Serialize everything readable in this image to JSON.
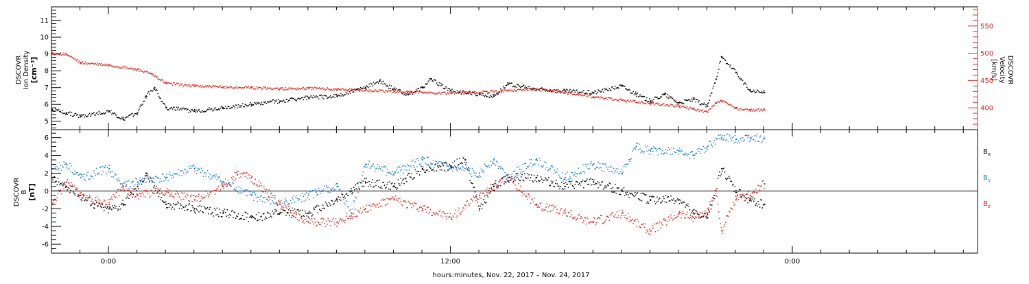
{
  "colors": {
    "black": "#000000",
    "red": "#e8231b",
    "blue": "#1a7fd6"
  },
  "time_axis": {
    "range_hours": [
      -2,
      30.5
    ],
    "ticks": [
      {
        "h": 0,
        "label": "0:00"
      },
      {
        "h": 12,
        "label": "12:00"
      },
      {
        "h": 24,
        "label": "0:00"
      }
    ],
    "title": "hours:minutes, Nov. 22, 2017 – Nov. 24, 2017"
  },
  "chart_data": [
    {
      "type": "scatter",
      "panel": "top",
      "y_label_lines": [
        "DSCOVR",
        "Ion Density",
        "[cm⁻³]"
      ],
      "y2_label_lines": [
        "DSCOVR",
        "Velocity",
        "[km/s]"
      ],
      "ylim": [
        4.5,
        11.8
      ],
      "y_ticks": [
        5,
        6,
        7,
        8,
        9,
        10,
        11
      ],
      "y2lim": [
        360,
        585
      ],
      "y2_ticks": [
        400,
        450,
        500,
        550
      ],
      "data_end_hour": 23,
      "series": [
        {
          "key": "density",
          "color": "black",
          "axis": "left",
          "jitter": 0.12,
          "x": [
            -2,
            -1.5,
            -1,
            0,
            0.5,
            1,
            1.3,
            1.6,
            2,
            3,
            4,
            5,
            6,
            7,
            8,
            9,
            9.5,
            10,
            10.5,
            11,
            11.3,
            12,
            13,
            13.5,
            14,
            15,
            16,
            17,
            18,
            18.5,
            19,
            19.5,
            20,
            20.5,
            21,
            21.3,
            21.5,
            22,
            22.5,
            23
          ],
          "y": [
            5.7,
            5.5,
            5.3,
            5.6,
            5.1,
            5.5,
            6.5,
            7.0,
            5.8,
            5.6,
            5.8,
            6.0,
            6.2,
            6.4,
            6.5,
            7.0,
            7.4,
            6.9,
            6.6,
            7.0,
            7.5,
            6.8,
            6.6,
            6.5,
            7.2,
            6.9,
            6.8,
            6.7,
            7.1,
            6.6,
            6.2,
            6.6,
            6.1,
            6.3,
            5.9,
            7.5,
            8.8,
            7.9,
            6.8,
            6.7
          ]
        },
        {
          "key": "velocity",
          "color": "red",
          "axis": "right",
          "jitter": 2.5,
          "x": [
            -2,
            -1.5,
            -1,
            0,
            1,
            1.5,
            2,
            3,
            4,
            5,
            6,
            7,
            8,
            9,
            10,
            11,
            12,
            13,
            14,
            15,
            16,
            17,
            18,
            19,
            20,
            20.5,
            21,
            21.3,
            21.5,
            22,
            22.5,
            23
          ],
          "y": [
            500,
            498,
            483,
            478,
            470,
            462,
            445,
            440,
            438,
            437,
            435,
            436,
            434,
            432,
            430,
            428,
            427,
            428,
            432,
            434,
            428,
            420,
            414,
            408,
            403,
            398,
            392,
            408,
            413,
            399,
            396,
            396
          ]
        }
      ]
    },
    {
      "type": "scatter",
      "panel": "bottom",
      "y_label_lines": [
        "DSCOVR",
        "B",
        "[nT]"
      ],
      "ylim": [
        -7,
        6.9
      ],
      "y_ticks": [
        -6,
        -4,
        -2,
        0,
        2,
        4,
        6
      ],
      "zero_line": true,
      "data_end_hour": 23,
      "legend": [
        {
          "main": "B",
          "sub": "x",
          "color": "black"
        },
        {
          "main": "B",
          "sub": "y",
          "color": "blue"
        },
        {
          "main": "B",
          "sub": "z",
          "color": "red"
        }
      ],
      "series": [
        {
          "key": "bx",
          "color": "black",
          "jitter": 0.5,
          "x": [
            -2,
            -1.5,
            -1,
            -0.5,
            0,
            0.5,
            1,
            1.3,
            2,
            3,
            4,
            5,
            6,
            7,
            8,
            8.5,
            9,
            10,
            11,
            12,
            12.5,
            13,
            13.5,
            14,
            15,
            16,
            17,
            18,
            19,
            20,
            20.5,
            21,
            21.5,
            22,
            22.5,
            23
          ],
          "y": [
            1.5,
            0.5,
            -0.5,
            -1.5,
            -2.0,
            -1.5,
            0.5,
            2.0,
            -1.5,
            -2.0,
            -2.5,
            -3.0,
            -2.5,
            -2.5,
            -1.0,
            0.0,
            1.0,
            0.5,
            2.5,
            2.8,
            3.5,
            -2.0,
            0.5,
            1.5,
            1.5,
            0.5,
            1.0,
            0.0,
            -1.0,
            -1.0,
            -2.5,
            -3.0,
            2.5,
            0.0,
            -1.0,
            -1.5
          ]
        },
        {
          "key": "by",
          "color": "blue",
          "jitter": 0.5,
          "x": [
            -2,
            -1.5,
            -1,
            0,
            0.5,
            1,
            2,
            3,
            4,
            5,
            6,
            7,
            8,
            8.5,
            9,
            10,
            11,
            12,
            13,
            13.5,
            14,
            15,
            16,
            17,
            18,
            18.5,
            19,
            20,
            20.5,
            21,
            21.5,
            22,
            22.5,
            23
          ],
          "y": [
            2.5,
            3.0,
            1.5,
            2.5,
            0.5,
            1.0,
            1.5,
            2.5,
            1.0,
            -0.5,
            -1.5,
            -0.5,
            0.5,
            -2.5,
            3.0,
            2.0,
            3.5,
            2.5,
            2.0,
            3.5,
            1.5,
            3.5,
            1.5,
            3.0,
            2.0,
            5.0,
            4.5,
            4.5,
            4.0,
            5.0,
            6.0,
            5.8,
            6.0,
            5.9
          ]
        },
        {
          "key": "bz",
          "color": "red",
          "jitter": 0.5,
          "x": [
            -2,
            -1.5,
            -1,
            0,
            0.5,
            1,
            2,
            3,
            4,
            4.5,
            5,
            6,
            7,
            8,
            9,
            10,
            11,
            12,
            13,
            14,
            15,
            16,
            17,
            18,
            19,
            20,
            20.5,
            21,
            21.3,
            21.5,
            22,
            22.5,
            23
          ],
          "y": [
            -1.5,
            1.0,
            -0.5,
            -1.5,
            0.5,
            -0.5,
            0.0,
            -1.0,
            0.5,
            1.8,
            1.5,
            -1.5,
            -3.5,
            -3.5,
            -2.0,
            -1.0,
            -2.0,
            -3.0,
            -0.5,
            1.5,
            -1.5,
            -2.5,
            -3.5,
            -2.5,
            -4.5,
            -2.5,
            -3.0,
            -2.5,
            0.0,
            -4.5,
            -1.0,
            -0.5,
            0.8
          ]
        }
      ]
    }
  ]
}
